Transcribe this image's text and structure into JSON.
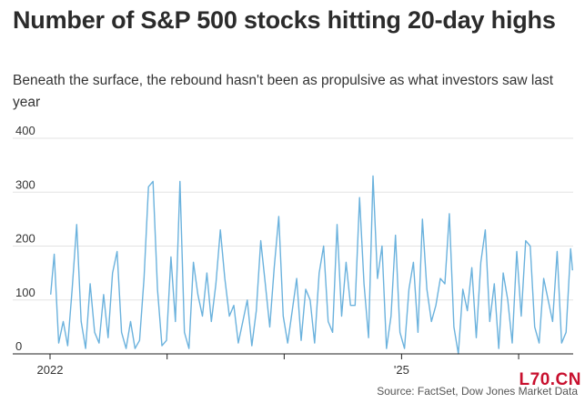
{
  "header": {
    "title": "Number of S&P 500 stocks hitting 20-day highs",
    "subtitle": "Beneath the surface, the rebound hasn't been as propulsive as what investors saw last year"
  },
  "footer": {
    "source": "Source: FactSet, Dow Jones Market Data",
    "watermark": "L70.CN"
  },
  "colors": {
    "line": "#6bb2dd",
    "grid": "#e3e3e3",
    "axis": "#222222"
  },
  "chart_data": {
    "type": "line",
    "title": "Number of S&P 500 stocks hitting 20-day highs",
    "ylim": [
      0,
      400
    ],
    "yticks": [
      400,
      300,
      200,
      100,
      0
    ],
    "xlim": [
      "2022-01-01",
      "2026-06-20"
    ],
    "xticks": [
      {
        "date": "2022-01-01",
        "label": "2022"
      },
      {
        "date": "2023-01-01",
        "label": ""
      },
      {
        "date": "2024-01-01",
        "label": ""
      },
      {
        "date": "2025-01-01",
        "label": "'25"
      },
      {
        "date": "2026-01-01",
        "label": ""
      }
    ],
    "series": [
      {
        "x": [
          "2022-01-03",
          "2022-01-14",
          "2022-01-28",
          "2022-02-11",
          "2022-02-25",
          "2022-03-11",
          "2022-03-25",
          "2022-04-08",
          "2022-04-22",
          "2022-05-06",
          "2022-05-20",
          "2022-06-03",
          "2022-06-17",
          "2022-07-01",
          "2022-07-15",
          "2022-07-29",
          "2022-08-12",
          "2022-08-26",
          "2022-09-09",
          "2022-09-23",
          "2022-10-07",
          "2022-10-21",
          "2022-11-04",
          "2022-11-18",
          "2022-12-02",
          "2022-12-16",
          "2022-12-30",
          "2023-01-13",
          "2023-01-27",
          "2023-02-10",
          "2023-02-24",
          "2023-03-10",
          "2023-03-24",
          "2023-04-07",
          "2023-04-21",
          "2023-05-05",
          "2023-05-19",
          "2023-06-02",
          "2023-06-16",
          "2023-06-30",
          "2023-07-14",
          "2023-07-28",
          "2023-08-11",
          "2023-08-25",
          "2023-09-08",
          "2023-09-22",
          "2023-10-06",
          "2023-10-20",
          "2023-11-03",
          "2023-11-17",
          "2023-12-01",
          "2023-12-15",
          "2023-12-29",
          "2024-01-12",
          "2024-01-26",
          "2024-02-09",
          "2024-02-23",
          "2024-03-08",
          "2024-03-22",
          "2024-04-05",
          "2024-04-19",
          "2024-05-03",
          "2024-05-17",
          "2024-05-31",
          "2024-06-14",
          "2024-06-28",
          "2024-07-12",
          "2024-07-26",
          "2024-08-09",
          "2024-08-23",
          "2024-09-06",
          "2024-09-20",
          "2024-10-04",
          "2024-10-18",
          "2024-11-01",
          "2024-11-15",
          "2024-11-29",
          "2024-12-13",
          "2024-12-27",
          "2025-01-10",
          "2025-01-24",
          "2025-02-07",
          "2025-02-21",
          "2025-03-07",
          "2025-03-21",
          "2025-04-04",
          "2025-04-18",
          "2025-05-02",
          "2025-05-16",
          "2025-05-30",
          "2025-06-13",
          "2025-06-27",
          "2025-07-11",
          "2025-07-25",
          "2025-08-08",
          "2025-08-22",
          "2025-09-05",
          "2025-09-19",
          "2025-10-03",
          "2025-10-17",
          "2025-10-31",
          "2025-11-14",
          "2025-11-28",
          "2025-12-12",
          "2025-12-26",
          "2026-01-09",
          "2026-01-23",
          "2026-02-06",
          "2026-02-20",
          "2026-03-06",
          "2026-03-20",
          "2026-04-03",
          "2026-04-17",
          "2026-05-01",
          "2026-05-15",
          "2026-05-29",
          "2026-06-12",
          "2026-06-18"
        ],
        "values": [
          110,
          185,
          20,
          60,
          15,
          120,
          240,
          60,
          10,
          130,
          40,
          20,
          110,
          30,
          150,
          190,
          40,
          10,
          60,
          10,
          25,
          140,
          310,
          320,
          120,
          15,
          25,
          180,
          60,
          320,
          40,
          10,
          170,
          110,
          70,
          150,
          60,
          130,
          230,
          140,
          70,
          90,
          20,
          60,
          100,
          15,
          80,
          210,
          130,
          50,
          160,
          255,
          70,
          20,
          80,
          140,
          25,
          120,
          100,
          20,
          150,
          200,
          60,
          40,
          240,
          70,
          170,
          90,
          90,
          290,
          130,
          30,
          330,
          140,
          200,
          10,
          70,
          220,
          40,
          10,
          120,
          170,
          40,
          250,
          120,
          60,
          90,
          140,
          130,
          260,
          50,
          0,
          120,
          80,
          160,
          30,
          170,
          230,
          60,
          130,
          10,
          150,
          100,
          20,
          190,
          70,
          210,
          200,
          50,
          20,
          140,
          100,
          60,
          190,
          20,
          40,
          195,
          155
        ]
      }
    ]
  }
}
